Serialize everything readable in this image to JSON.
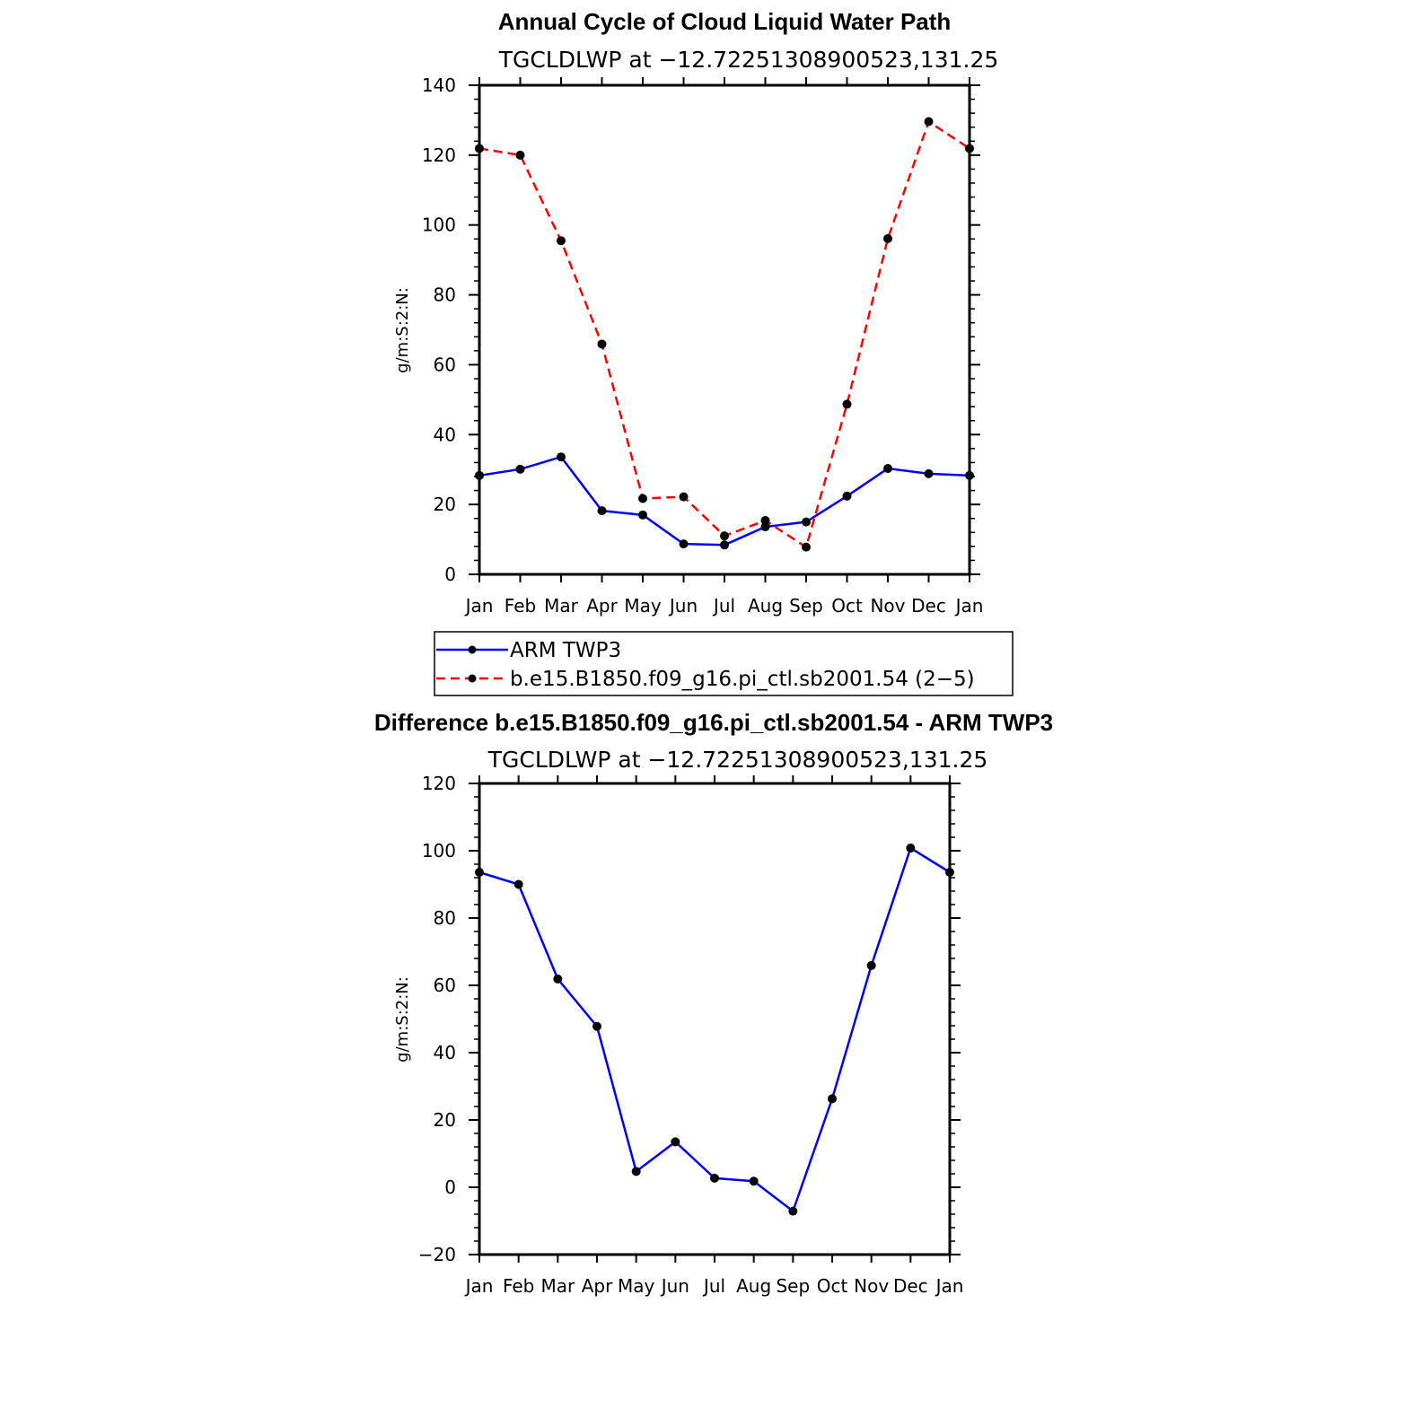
{
  "chart_data": [
    {
      "type": "line",
      "title": "Annual Cycle of Cloud Liquid Water Path",
      "subtitle": "TGCLDLWP at −12.72251308900523,131.25",
      "ylabel": "g/m:S:2:N:",
      "xlabel": "",
      "categories": [
        "Jan",
        "Feb",
        "Mar",
        "Apr",
        "May",
        "Jun",
        "Jul",
        "Aug",
        "Sep",
        "Oct",
        "Nov",
        "Dec",
        "Jan"
      ],
      "ylim": [
        0,
        140
      ],
      "yticks": [
        0,
        20,
        40,
        60,
        80,
        100,
        120,
        140
      ],
      "yticklabels": [
        "0",
        "20",
        "40",
        "60",
        "80",
        "100",
        "120",
        "140"
      ],
      "series": [
        {
          "name": "ARM TWP3",
          "color": "#0000ff",
          "style": "solid",
          "values": [
            28.3,
            30.1,
            33.6,
            18.2,
            17.0,
            8.7,
            8.4,
            13.6,
            15.0,
            22.4,
            30.3,
            28.8,
            28.3
          ]
        },
        {
          "name": "b.e15.B1850.f09_g16.pi_ctl.sb2001.54 (2−5)",
          "color": "#ff0000",
          "style": "dashed",
          "values": [
            121.9,
            120.0,
            95.5,
            65.9,
            21.7,
            22.2,
            11.0,
            15.4,
            7.8,
            48.7,
            96.1,
            129.6,
            121.9
          ]
        }
      ],
      "legend": {
        "placement": "below",
        "entries": [
          "ARM TWP3",
          "b.e15.B1850.f09_g16.pi_ctl.sb2001.54 (2−5)"
        ]
      }
    },
    {
      "type": "line",
      "title": "Difference b.e15.B1850.f09_g16.pi_ctl.sb2001.54 - ARM TWP3",
      "subtitle": "TGCLDLWP at −12.72251308900523,131.25",
      "ylabel": "g/m:S:2:N:",
      "xlabel": "",
      "categories": [
        "Jan",
        "Feb",
        "Mar",
        "Apr",
        "May",
        "Jun",
        "Jul",
        "Aug",
        "Sep",
        "Oct",
        "Nov",
        "Dec",
        "Jan"
      ],
      "ylim": [
        -20,
        120
      ],
      "yticks": [
        -20,
        0,
        20,
        40,
        60,
        80,
        100,
        120
      ],
      "yticklabels": [
        "−20",
        "0",
        "20",
        "40",
        "60",
        "80",
        "100",
        "120"
      ],
      "series": [
        {
          "name": "Difference",
          "color": "#0000ff",
          "style": "solid",
          "values": [
            93.6,
            90.0,
            61.9,
            47.8,
            4.7,
            13.5,
            2.7,
            1.8,
            -7.1,
            26.3,
            65.9,
            100.8,
            93.6
          ]
        }
      ]
    }
  ]
}
